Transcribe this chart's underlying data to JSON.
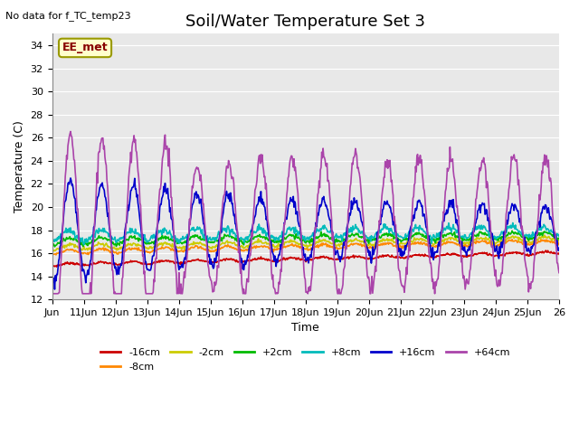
{
  "title": "Soil/Water Temperature Set 3",
  "xlabel": "Time",
  "ylabel": "Temperature (C)",
  "note": "No data for f_TC_temp23",
  "annotation_label": "EE_met",
  "ylim": [
    12,
    35
  ],
  "yticks": [
    12,
    14,
    16,
    18,
    20,
    22,
    24,
    26,
    28,
    30,
    32,
    34
  ],
  "xtick_labels": [
    "Jun",
    "11Jun",
    "12Jun",
    "13Jun",
    "14Jun",
    "15Jun",
    "16Jun",
    "17Jun",
    "18Jun",
    "19Jun",
    "20Jun",
    "21Jun",
    "22Jun",
    "23Jun",
    "24Jun",
    "25Jun",
    "26"
  ],
  "series": [
    {
      "label": "-16cm",
      "color": "#cc0000",
      "lw": 1.2
    },
    {
      "label": "-8cm",
      "color": "#ff8800",
      "lw": 1.2
    },
    {
      "label": "-2cm",
      "color": "#cccc00",
      "lw": 1.2
    },
    {
      "label": "+2cm",
      "color": "#00bb00",
      "lw": 1.2
    },
    {
      "label": "+8cm",
      "color": "#00bbbb",
      "lw": 1.2
    },
    {
      "label": "+16cm",
      "color": "#0000cc",
      "lw": 1.2
    },
    {
      "label": "+64cm",
      "color": "#aa44aa",
      "lw": 1.2
    }
  ],
  "background_color": "#ffffff",
  "plot_bg_color": "#e8e8e8",
  "grid_color": "#ffffff",
  "title_fontsize": 13,
  "axis_label_fontsize": 9,
  "tick_fontsize": 8,
  "legend_fontsize": 8,
  "note_fontsize": 8
}
